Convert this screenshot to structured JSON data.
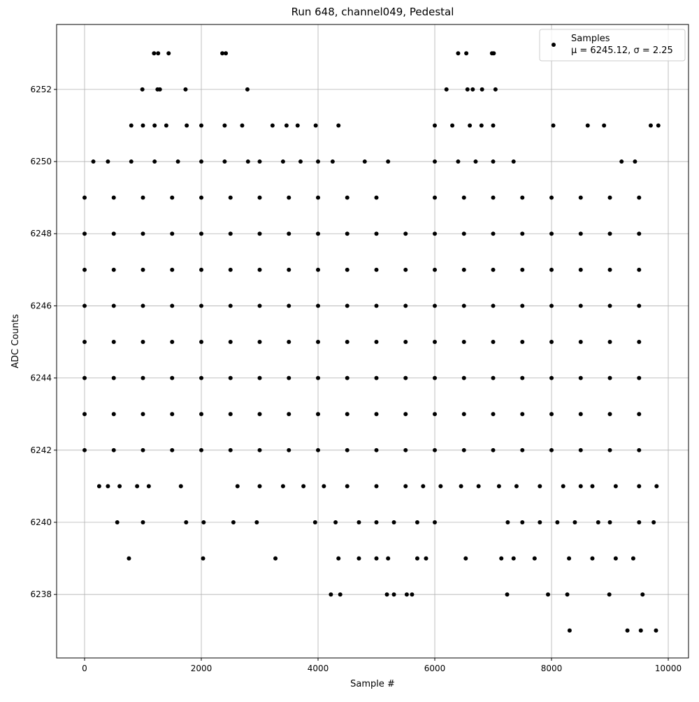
{
  "chart_data": {
    "type": "scatter",
    "title": "Run 648, channel049, Pedestal",
    "x_label": "Sample #",
    "y_label": "ADC Counts",
    "legend_text": "μ = 6245.12, σ = 2.25",
    "legend_position": "upper right",
    "grid": true,
    "xlim": [
      -479,
      10347
    ],
    "ylim": [
      6236.24,
      6253.8
    ],
    "xticks": [
      0,
      2000,
      4000,
      6000,
      8000,
      10000
    ],
    "yticks": [
      6238,
      6240,
      6242,
      6244,
      6246,
      6248,
      6250,
      6252
    ],
    "series": [
      {
        "name": "Samples",
        "color": "#000000",
        "x": [
          0,
          500,
          1000,
          1500,
          2000,
          2500,
          3000,
          3500,
          4000,
          4500,
          5000,
          6000,
          6500,
          7000,
          7500,
          8000,
          8500,
          9000,
          9500,
          0,
          500,
          1000,
          1500,
          2000,
          2500,
          3000,
          3500,
          4000,
          4500,
          5000,
          5500,
          6000,
          6500,
          7000,
          7500,
          8000,
          8500,
          9000,
          9500,
          0,
          500,
          1000,
          1500,
          2000,
          2500,
          3000,
          3500,
          4000,
          4500,
          5000,
          5500,
          6000,
          6500,
          7000,
          7500,
          8000,
          8500,
          9000,
          9500,
          0,
          500,
          1000,
          1500,
          2000,
          2500,
          3000,
          3500,
          4000,
          4500,
          5000,
          5500,
          6000,
          6500,
          7000,
          7500,
          8000,
          8500,
          9000,
          9500,
          0,
          500,
          1000,
          1500,
          2000,
          2500,
          3000,
          3500,
          4000,
          4500,
          5000,
          5500,
          6000,
          6500,
          7000,
          7500,
          8000,
          8500,
          9000,
          9500,
          0,
          500,
          1000,
          1500,
          2000,
          2500,
          3000,
          3500,
          4000,
          4500,
          5000,
          5500,
          6000,
          6500,
          7000,
          7500,
          8000,
          8500,
          9000,
          9500,
          0,
          500,
          1000,
          1500,
          2000,
          2500,
          3000,
          3500,
          4000,
          4500,
          5000,
          5500,
          6000,
          6500,
          7000,
          7500,
          8000,
          8500,
          9000,
          9500,
          0,
          500,
          1000,
          1500,
          2000,
          2500,
          3000,
          3500,
          4000,
          4500,
          5000,
          5500,
          6000,
          6500,
          7000,
          7500,
          8000,
          8500,
          9000,
          9500,
          1190,
          1260,
          1440,
          2360,
          2420,
          6400,
          6540,
          6980,
          7010,
          990,
          1250,
          1290,
          1730,
          2790,
          6200,
          6560,
          6650,
          6810,
          7040,
          800,
          1000,
          1200,
          1400,
          1750,
          2000,
          2400,
          2700,
          3220,
          3460,
          3650,
          3960,
          4350,
          6000,
          6300,
          6600,
          6800,
          7000,
          8030,
          8620,
          8900,
          9700,
          9830,
          150,
          400,
          800,
          1200,
          1600,
          2000,
          2400,
          2800,
          3000,
          3400,
          3700,
          4000,
          4250,
          4800,
          5200,
          6000,
          6400,
          6700,
          7000,
          7350,
          9200,
          9430,
          250,
          400,
          600,
          900,
          1100,
          1650,
          2620,
          3000,
          3400,
          3750,
          4100,
          4500,
          5000,
          5500,
          5800,
          6100,
          6450,
          6750,
          7100,
          7400,
          7800,
          8200,
          8500,
          8700,
          9100,
          9500,
          9800,
          560,
          1000,
          1740,
          2040,
          2550,
          2950,
          3950,
          4300,
          4700,
          5000,
          5300,
          5700,
          6000,
          7250,
          7500,
          7800,
          8100,
          8400,
          8800,
          9000,
          9500,
          9750,
          760,
          2030,
          3270,
          4350,
          4700,
          5000,
          5200,
          5700,
          5850,
          6530,
          7140,
          7350,
          7710,
          8300,
          8700,
          9100,
          9400,
          4220,
          4380,
          5180,
          5300,
          5520,
          5610,
          7240,
          7940,
          8270,
          8990,
          9560,
          8310,
          9300,
          9530,
          9790
        ],
        "y": [
          6249,
          6249,
          6249,
          6249,
          6249,
          6249,
          6249,
          6249,
          6249,
          6249,
          6249,
          6249,
          6249,
          6249,
          6249,
          6249,
          6249,
          6249,
          6249,
          6248,
          6248,
          6248,
          6248,
          6248,
          6248,
          6248,
          6248,
          6248,
          6248,
          6248,
          6248,
          6248,
          6248,
          6248,
          6248,
          6248,
          6248,
          6248,
          6248,
          6247,
          6247,
          6247,
          6247,
          6247,
          6247,
          6247,
          6247,
          6247,
          6247,
          6247,
          6247,
          6247,
          6247,
          6247,
          6247,
          6247,
          6247,
          6247,
          6247,
          6246,
          6246,
          6246,
          6246,
          6246,
          6246,
          6246,
          6246,
          6246,
          6246,
          6246,
          6246,
          6246,
          6246,
          6246,
          6246,
          6246,
          6246,
          6246,
          6246,
          6245,
          6245,
          6245,
          6245,
          6245,
          6245,
          6245,
          6245,
          6245,
          6245,
          6245,
          6245,
          6245,
          6245,
          6245,
          6245,
          6245,
          6245,
          6245,
          6245,
          6244,
          6244,
          6244,
          6244,
          6244,
          6244,
          6244,
          6244,
          6244,
          6244,
          6244,
          6244,
          6244,
          6244,
          6244,
          6244,
          6244,
          6244,
          6244,
          6244,
          6243,
          6243,
          6243,
          6243,
          6243,
          6243,
          6243,
          6243,
          6243,
          6243,
          6243,
          6243,
          6243,
          6243,
          6243,
          6243,
          6243,
          6243,
          6243,
          6243,
          6242,
          6242,
          6242,
          6242,
          6242,
          6242,
          6242,
          6242,
          6242,
          6242,
          6242,
          6242,
          6242,
          6242,
          6242,
          6242,
          6242,
          6242,
          6242,
          6242,
          6253,
          6253,
          6253,
          6253,
          6253,
          6253,
          6253,
          6253,
          6253,
          6252,
          6252,
          6252,
          6252,
          6252,
          6252,
          6252,
          6252,
          6252,
          6252,
          6251,
          6251,
          6251,
          6251,
          6251,
          6251,
          6251,
          6251,
          6251,
          6251,
          6251,
          6251,
          6251,
          6251,
          6251,
          6251,
          6251,
          6251,
          6251,
          6251,
          6251,
          6251,
          6251,
          6250,
          6250,
          6250,
          6250,
          6250,
          6250,
          6250,
          6250,
          6250,
          6250,
          6250,
          6250,
          6250,
          6250,
          6250,
          6250,
          6250,
          6250,
          6250,
          6250,
          6250,
          6250,
          6241,
          6241,
          6241,
          6241,
          6241,
          6241,
          6241,
          6241,
          6241,
          6241,
          6241,
          6241,
          6241,
          6241,
          6241,
          6241,
          6241,
          6241,
          6241,
          6241,
          6241,
          6241,
          6241,
          6241,
          6241,
          6241,
          6241,
          6240,
          6240,
          6240,
          6240,
          6240,
          6240,
          6240,
          6240,
          6240,
          6240,
          6240,
          6240,
          6240,
          6240,
          6240,
          6240,
          6240,
          6240,
          6240,
          6240,
          6240,
          6240,
          6239,
          6239,
          6239,
          6239,
          6239,
          6239,
          6239,
          6239,
          6239,
          6239,
          6239,
          6239,
          6239,
          6239,
          6239,
          6239,
          6239,
          6238,
          6238,
          6238,
          6238,
          6238,
          6238,
          6238,
          6238,
          6238,
          6238,
          6238,
          6237,
          6237,
          6237,
          6237
        ]
      }
    ]
  }
}
